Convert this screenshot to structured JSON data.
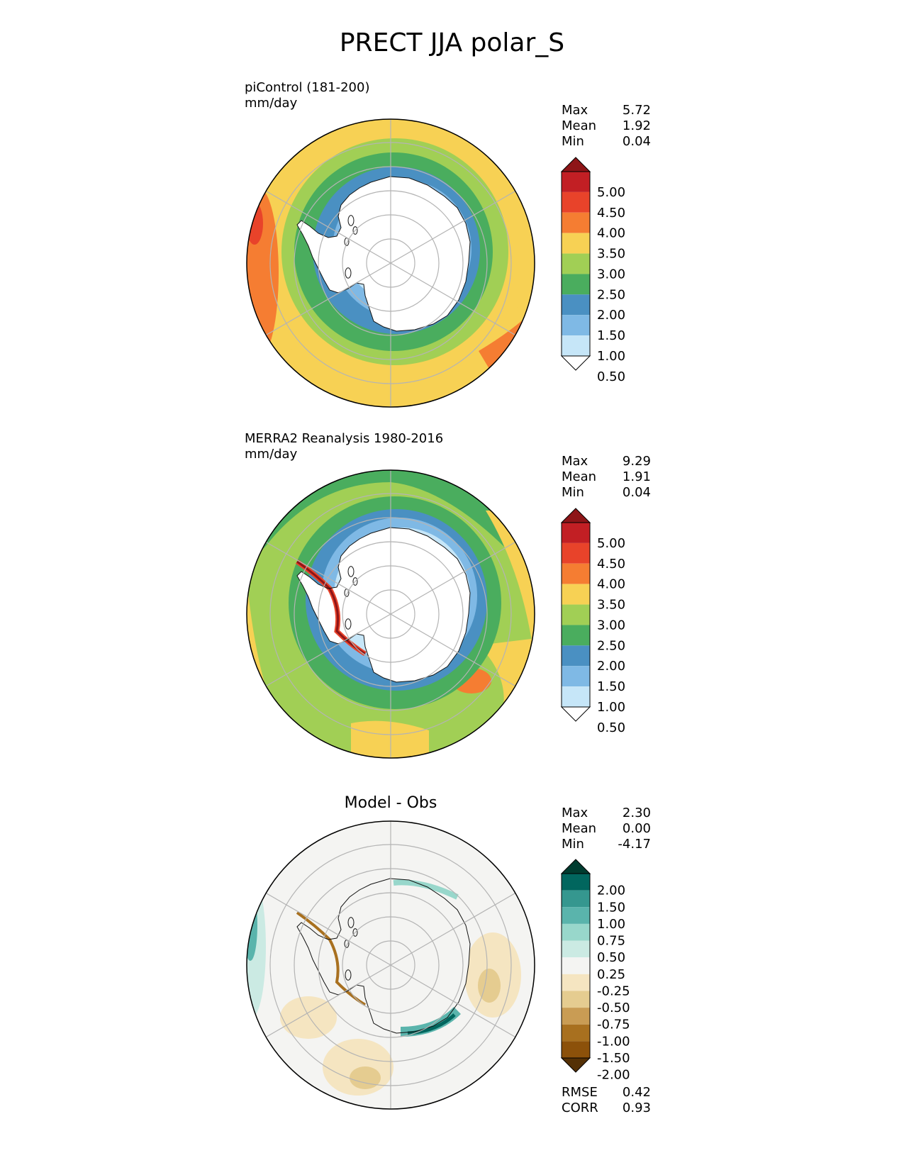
{
  "title": "PRECT JJA polar_S",
  "panels": [
    {
      "id": "test",
      "label_line1": "piControl (181-200)",
      "label_line2": "mm/day",
      "stats": [
        {
          "name": "Max",
          "value": "5.72"
        },
        {
          "name": "Mean",
          "value": "1.92"
        },
        {
          "name": "Min",
          "value": "0.04"
        }
      ]
    },
    {
      "id": "ref",
      "label_line1": "MERRA2 Reanalysis 1980-2016",
      "label_line2": "mm/day",
      "stats": [
        {
          "name": "Max",
          "value": "9.29"
        },
        {
          "name": "Mean",
          "value": "1.91"
        },
        {
          "name": "Min",
          "value": "0.04"
        }
      ]
    },
    {
      "id": "diff",
      "title": "Model - Obs",
      "stats": [
        {
          "name": "Max",
          "value": "2.30"
        },
        {
          "name": "Mean",
          "value": "0.00"
        },
        {
          "name": "Min",
          "value": "-4.17"
        }
      ],
      "metrics": [
        {
          "name": "RMSE",
          "value": "0.42"
        },
        {
          "name": "CORR",
          "value": "0.93"
        }
      ]
    }
  ],
  "colorbar_precip": {
    "ticks": [
      "5.00",
      "4.50",
      "4.00",
      "3.50",
      "3.00",
      "2.50",
      "2.00",
      "1.50",
      "1.00",
      "0.50"
    ],
    "colors": [
      "#8e1518",
      "#c21f24",
      "#e8432a",
      "#f57d32",
      "#f7d154",
      "#a1cf55",
      "#4aad5e",
      "#4a90c2",
      "#7fb9e5",
      "#c6e6f8",
      "#ffffff"
    ]
  },
  "colorbar_diff": {
    "ticks": [
      "2.00",
      "1.50",
      "1.00",
      "0.75",
      "0.50",
      "0.25",
      "-0.25",
      "-0.50",
      "-0.75",
      "-1.00",
      "-1.50",
      "-2.00"
    ],
    "colors": [
      "#003c30",
      "#01665e",
      "#35978f",
      "#5ab4ac",
      "#98d7cb",
      "#cbeae3",
      "#f4f4f2",
      "#f5e5c1",
      "#e5cc90",
      "#c99c54",
      "#a8701f",
      "#8c510a",
      "#543005"
    ]
  },
  "map_colors": {
    "coastline": "#111111",
    "graticule": "#b4b4b4",
    "boundary": "#000000"
  }
}
